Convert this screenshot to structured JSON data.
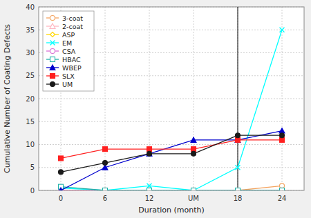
{
  "chart_data": {
    "type": "line",
    "xlabel": "Duration (month)",
    "ylabel": "Cumulative Number of Coating Defects",
    "categories": [
      "0",
      "6",
      "12",
      "UM",
      "18",
      "24"
    ],
    "ylim": [
      0,
      40
    ],
    "yticks": [
      0,
      5,
      10,
      15,
      20,
      25,
      30,
      35,
      40
    ],
    "grid": true,
    "legend": "upper left",
    "vline": "18",
    "series": [
      {
        "name": "3-coat",
        "color": "#F4A460",
        "marker": "circle-open",
        "values": [
          0,
          0,
          0,
          0,
          0,
          1
        ]
      },
      {
        "name": "2-coat",
        "color": "#FFB6C1",
        "marker": "triangle-open",
        "values": [
          0,
          0,
          0,
          0,
          0,
          0
        ]
      },
      {
        "name": "ASP",
        "color": "#FFD700",
        "marker": "diamond-open",
        "values": [
          0,
          0,
          0,
          0,
          0,
          0
        ]
      },
      {
        "name": "EM",
        "color": "#00FFFF",
        "marker": "x",
        "values": [
          0.5,
          0,
          1,
          0,
          5,
          35
        ]
      },
      {
        "name": "CSA",
        "color": "#DA70D6",
        "marker": "circle-open",
        "values": [
          0,
          0,
          0,
          0,
          0,
          0
        ]
      },
      {
        "name": "HBAC",
        "color": "#20B2AA",
        "marker": "square-open",
        "values": [
          0.8,
          0,
          0,
          0,
          0,
          0
        ]
      },
      {
        "name": "WBEP",
        "color": "#0000CD",
        "marker": "triangle",
        "values": [
          0,
          5,
          8,
          11,
          11,
          13
        ]
      },
      {
        "name": "SLX",
        "color": "#FF2020",
        "marker": "square",
        "values": [
          7,
          9,
          9,
          9,
          11,
          11
        ]
      },
      {
        "name": "UM",
        "color": "#1a1a1a",
        "marker": "circle",
        "values": [
          4,
          6,
          8,
          8,
          12,
          12
        ]
      }
    ]
  }
}
